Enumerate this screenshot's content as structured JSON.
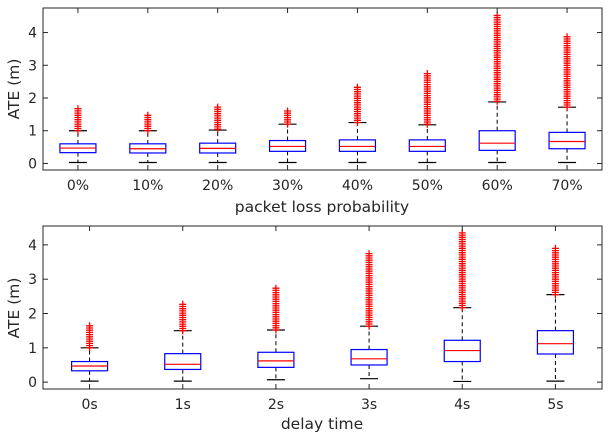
{
  "colors": {
    "box": "#0000ff",
    "median": "#ff0000",
    "whisker": "#000000",
    "outlier": "#ff0000",
    "axis": "#262626"
  },
  "chart_data": [
    {
      "type": "box",
      "title": "",
      "xlabel": "packet loss probability",
      "ylabel": "ATE (m)",
      "ylim": [
        -0.2,
        4.75
      ],
      "yticks": [
        0,
        1,
        2,
        3,
        4
      ],
      "categories": [
        "0%",
        "10%",
        "20%",
        "30%",
        "40%",
        "50%",
        "60%",
        "70%"
      ],
      "boxes": [
        {
          "q1": 0.33,
          "median": 0.47,
          "q3": 0.6,
          "whisker_low": 0.03,
          "whisker_high": 1.0,
          "outlier_min": 1.0,
          "outlier_max": 1.68
        },
        {
          "q1": 0.32,
          "median": 0.45,
          "q3": 0.6,
          "whisker_low": 0.03,
          "whisker_high": 1.0,
          "outlier_min": 1.0,
          "outlier_max": 1.53
        },
        {
          "q1": 0.32,
          "median": 0.46,
          "q3": 0.62,
          "whisker_low": 0.03,
          "whisker_high": 1.02,
          "outlier_min": 1.05,
          "outlier_max": 1.78
        },
        {
          "q1": 0.37,
          "median": 0.52,
          "q3": 0.7,
          "whisker_low": 0.03,
          "whisker_high": 1.2,
          "outlier_min": 1.2,
          "outlier_max": 1.65
        },
        {
          "q1": 0.37,
          "median": 0.52,
          "q3": 0.72,
          "whisker_low": 0.03,
          "whisker_high": 1.25,
          "outlier_min": 1.25,
          "outlier_max": 2.35
        },
        {
          "q1": 0.37,
          "median": 0.52,
          "q3": 0.72,
          "whisker_low": 0.03,
          "whisker_high": 1.18,
          "outlier_min": 1.2,
          "outlier_max": 2.75
        },
        {
          "q1": 0.4,
          "median": 0.62,
          "q3": 1.0,
          "whisker_low": 0.03,
          "whisker_high": 1.88,
          "outlier_min": 1.9,
          "outlier_max": 4.55
        },
        {
          "q1": 0.45,
          "median": 0.67,
          "q3": 0.95,
          "whisker_low": 0.03,
          "whisker_high": 1.72,
          "outlier_min": 1.72,
          "outlier_max": 3.92
        }
      ]
    },
    {
      "type": "box",
      "title": "",
      "xlabel": "delay time",
      "ylabel": "ATE (m)",
      "ylim": [
        -0.2,
        4.55
      ],
      "yticks": [
        0,
        1,
        2,
        3,
        4
      ],
      "categories": [
        "0s",
        "1s",
        "2s",
        "3s",
        "4s",
        "5s"
      ],
      "boxes": [
        {
          "q1": 0.33,
          "median": 0.47,
          "q3": 0.6,
          "whisker_low": 0.03,
          "whisker_high": 1.0,
          "outlier_min": 1.0,
          "outlier_max": 1.65
        },
        {
          "q1": 0.37,
          "median": 0.52,
          "q3": 0.83,
          "whisker_low": 0.03,
          "whisker_high": 1.5,
          "outlier_min": 1.5,
          "outlier_max": 2.33
        },
        {
          "q1": 0.43,
          "median": 0.62,
          "q3": 0.87,
          "whisker_low": 0.07,
          "whisker_high": 1.52,
          "outlier_min": 1.52,
          "outlier_max": 2.78
        },
        {
          "q1": 0.5,
          "median": 0.68,
          "q3": 0.95,
          "whisker_low": 0.1,
          "whisker_high": 1.63,
          "outlier_min": 1.63,
          "outlier_max": 3.8
        },
        {
          "q1": 0.6,
          "median": 0.92,
          "q3": 1.22,
          "whisker_low": 0.02,
          "whisker_high": 2.17,
          "outlier_min": 2.17,
          "outlier_max": 4.35
        },
        {
          "q1": 0.82,
          "median": 1.12,
          "q3": 1.5,
          "whisker_low": 0.03,
          "whisker_high": 2.55,
          "outlier_min": 2.55,
          "outlier_max": 3.95
        }
      ]
    }
  ]
}
